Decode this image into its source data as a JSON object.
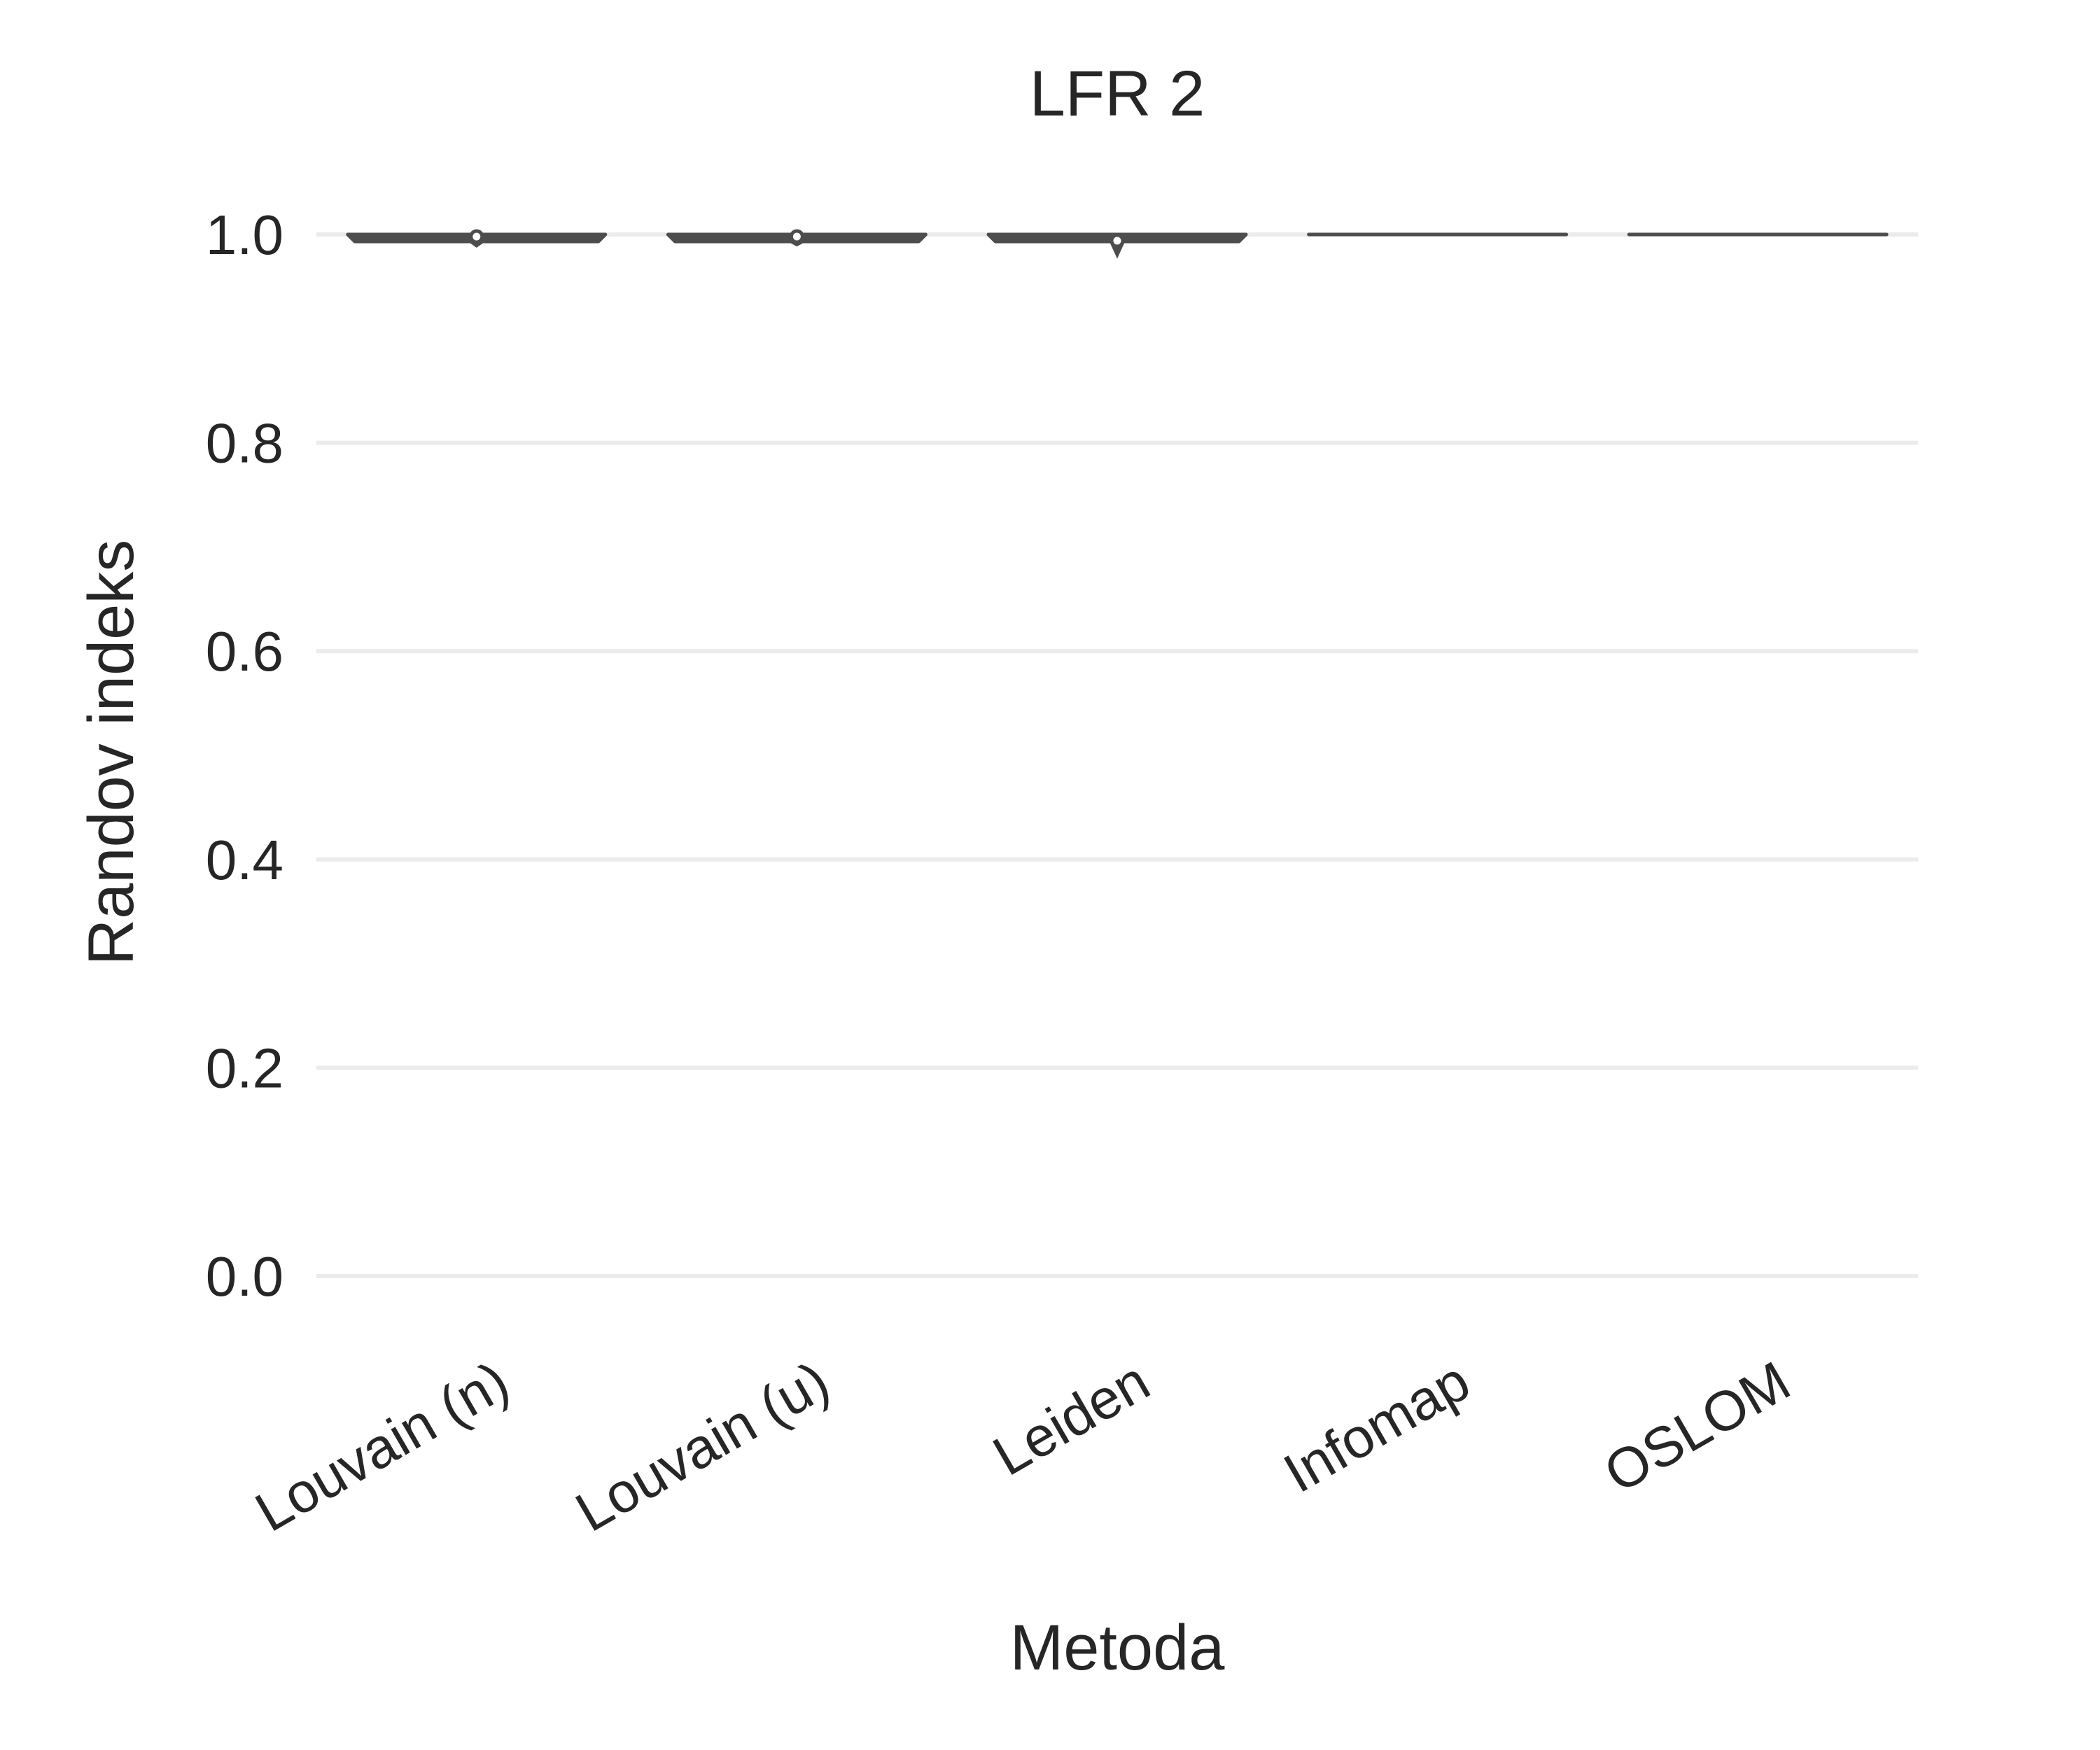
{
  "chart_data": {
    "type": "violin",
    "title": "LFR 2",
    "xlabel": "Metoda",
    "ylabel": "Randov indeks",
    "categories": [
      "Louvain (n)",
      "Louvain (u)",
      "Leiden",
      "Infomap",
      "OSLOM"
    ],
    "ylim": [
      -0.09,
      1.07
    ],
    "yticks": [
      0.0,
      0.2,
      0.4,
      0.6,
      0.8,
      1.0
    ],
    "ytick_labels": [
      "0.0",
      "0.2",
      "0.4",
      "0.6",
      "0.8",
      "1.0"
    ],
    "grid": "horizontal",
    "violins": [
      {
        "category": "Louvain (n)",
        "min": 0.989,
        "max": 1.0,
        "median": 0.998
      },
      {
        "category": "Louvain (u)",
        "min": 0.99,
        "max": 1.0,
        "median": 0.998
      },
      {
        "category": "Leiden",
        "min": 0.98,
        "max": 1.0,
        "median": 0.994
      },
      {
        "category": "Infomap",
        "min": 1.0,
        "max": 1.0,
        "median": 1.0
      },
      {
        "category": "OSLOM",
        "min": 1.0,
        "max": 1.0,
        "median": 1.0
      }
    ],
    "colors": {
      "violin_edge": "#4d4d4d",
      "grid": "#ebebeb",
      "text": "#262626",
      "median_dot": "#ffffff"
    }
  }
}
